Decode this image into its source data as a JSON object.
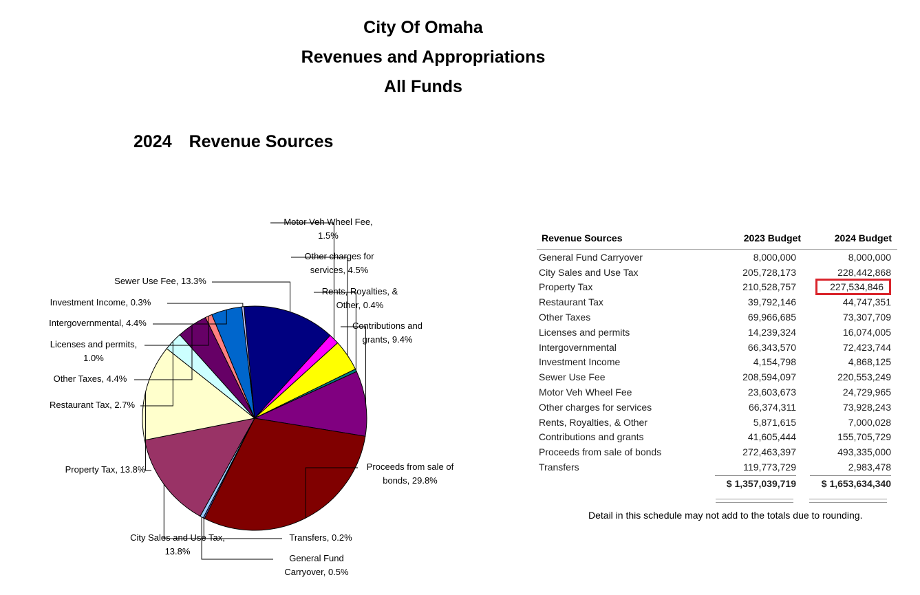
{
  "header": {
    "line1": "City Of Omaha",
    "line2": "Revenues and Appropriations",
    "line3": "All Funds"
  },
  "chart_data": {
    "type": "pie",
    "year": "2024",
    "title": "Revenue Sources",
    "slices": [
      {
        "label": "Sewer Use Fee, 13.3%",
        "value": 13.3,
        "color": "#000080"
      },
      {
        "label": "Motor Veh Wheel Fee, 1.5%",
        "value": 1.5,
        "color": "#ff00ff"
      },
      {
        "label": "Other charges for services, 4.5%",
        "value": 4.5,
        "color": "#ffff00"
      },
      {
        "label": "Rents, Royalties, & Other, 0.4%",
        "value": 0.4,
        "color": "#008080"
      },
      {
        "label": "Contributions and grants, 9.4%",
        "value": 9.4,
        "color": "#800080"
      },
      {
        "label": "Proceeds from sale of bonds, 29.8%",
        "value": 29.8,
        "color": "#800000"
      },
      {
        "label": "Transfers, 0.2%",
        "value": 0.2,
        "color": "#6666cc"
      },
      {
        "label": "General Fund Carryover, 0.5%",
        "value": 0.5,
        "color": "#99ccff"
      },
      {
        "label": "City Sales and Use Tax, 13.8%",
        "value": 13.8,
        "color": "#993366"
      },
      {
        "label": "Property Tax, 13.8%",
        "value": 13.8,
        "color": "#ffffcc"
      },
      {
        "label": "Restaurant Tax, 2.7%",
        "value": 2.7,
        "color": "#ccffff"
      },
      {
        "label": "Other Taxes, 4.4%",
        "value": 4.4,
        "color": "#660066"
      },
      {
        "label": "Licenses and permits, 1.0%",
        "value": 1.0,
        "color": "#ff8080"
      },
      {
        "label": "Intergovernmental, 4.4%",
        "value": 4.4,
        "color": "#0066cc"
      },
      {
        "label": "Investment Income, 0.3%",
        "value": 0.3,
        "color": "#ccccff"
      }
    ]
  },
  "table": {
    "headers": [
      "Revenue Sources",
      "2023 Budget",
      "2024 Budget"
    ],
    "rows": [
      [
        "General Fund Carryover",
        "8,000,000",
        "8,000,000"
      ],
      [
        "City Sales and Use Tax",
        "205,728,173",
        "228,442,868"
      ],
      [
        "Property Tax",
        "210,528,757",
        "227,534,846"
      ],
      [
        "Restaurant Tax",
        "39,792,146",
        "44,747,351"
      ],
      [
        "Other Taxes",
        "69,966,685",
        "73,307,709"
      ],
      [
        "Licenses and permits",
        "14,239,324",
        "16,074,005"
      ],
      [
        "Intergovernmental",
        "66,343,570",
        "72,423,744"
      ],
      [
        "Investment Income",
        "4,154,798",
        "4,868,125"
      ],
      [
        "Sewer Use Fee",
        "208,594,097",
        "220,553,249"
      ],
      [
        "Motor Veh Wheel Fee",
        "23,603,673",
        "24,729,965"
      ],
      [
        "Other charges for services",
        "66,374,311",
        "73,928,243"
      ],
      [
        "Rents, Royalties, & Other",
        "5,871,615",
        "7,000,028"
      ],
      [
        "Contributions and grants",
        "41,605,444",
        "155,705,729"
      ],
      [
        "Proceeds from sale of bonds",
        "272,463,397",
        "493,335,000"
      ],
      [
        "Transfers",
        "119,773,729",
        "2,983,478"
      ]
    ],
    "totals": [
      "$ 1,357,039,719",
      "$ 1,653,634,340"
    ],
    "highlight_color": "#d9242b"
  },
  "note": "Detail in this schedule may not add to the totals due to rounding."
}
